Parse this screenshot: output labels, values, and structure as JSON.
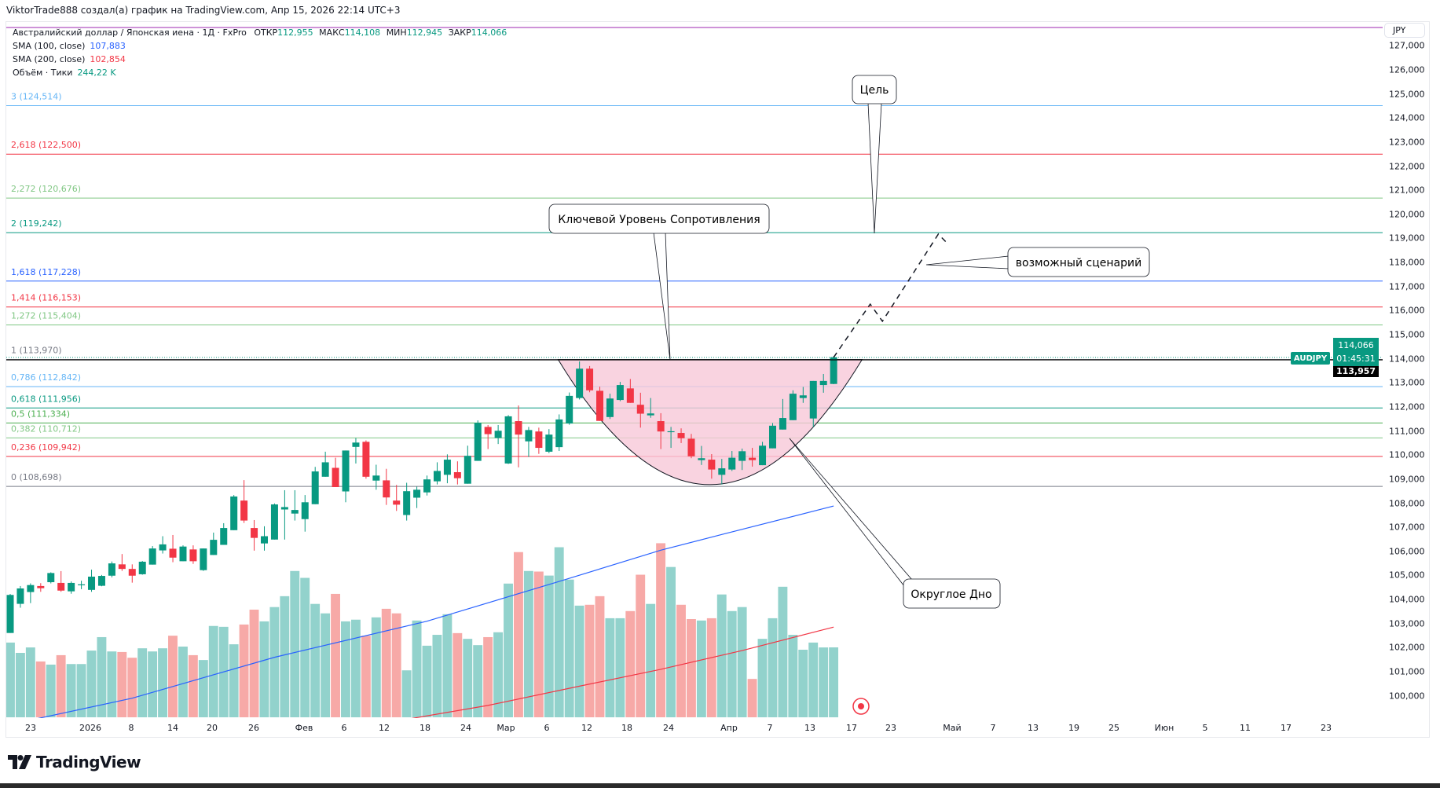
{
  "header": {
    "caption": "ViktorTrade888 создал(а) график на TradingView.com, Апр 15, 2026 22:14 UTC+3"
  },
  "legend": {
    "symbol_desc": "Австралийский доллар / Японская иена · 1Д · FxPro",
    "open_label": "ОТКР",
    "open": "112,955",
    "high_label": "МАКС",
    "high": "114,108",
    "low_label": "МИН",
    "low": "112,945",
    "close_label": "ЗАКР",
    "close": "114,066",
    "sma100_label": "SMA (100, close)",
    "sma100_value": "107,883",
    "sma200_label": "SMA (200, close)",
    "sma200_value": "102,854",
    "volume_label": "Объём · Тики",
    "volume_value": "244,22 K"
  },
  "price_axis": {
    "currency_button": "JPY",
    "ticks": [
      "127,000",
      "126,000",
      "125,000",
      "124,000",
      "123,000",
      "122,000",
      "121,000",
      "120,000",
      "119,000",
      "118,000",
      "117,000",
      "116,000",
      "115,000",
      "114,000",
      "113,000",
      "112,000",
      "111,000",
      "110,000",
      "109,000",
      "108,000",
      "107,000",
      "106,000",
      "105,000",
      "104,000",
      "103,000",
      "102,000",
      "101,000",
      "100,000"
    ],
    "symbol_tag": "AUDJPY",
    "last_price": "114,066",
    "countdown": "01:45:31",
    "line_price": "113,957"
  },
  "time_axis": {
    "labels": [
      "23",
      "2026",
      "8",
      "14",
      "20",
      "26",
      "Фев",
      "6",
      "12",
      "18",
      "24",
      "Мар",
      "6",
      "12",
      "18",
      "24",
      "Апр",
      "7",
      "13",
      "17",
      "23",
      "Май",
      "7",
      "13",
      "19",
      "25",
      "Июн",
      "5",
      "11",
      "17",
      "23"
    ]
  },
  "colors": {
    "up": "#089981",
    "down": "#f23645",
    "vol_up": "#92d2cc",
    "vol_down": "#f7a9a7",
    "sma100": "#2962ff",
    "sma200": "#f23645",
    "pattern_fill": "#f8c8d8"
  },
  "chart_data": {
    "type": "candlestick",
    "symbol": "AUDJPY",
    "ylim": [
      99.0,
      127.8
    ],
    "candles_ohlc": [
      [
        102.61,
        104.23,
        102.61,
        104.19
      ],
      [
        103.82,
        104.56,
        103.66,
        104.46
      ],
      [
        104.31,
        104.67,
        103.85,
        104.6
      ],
      [
        104.56,
        104.68,
        104.32,
        104.47
      ],
      [
        104.72,
        105.13,
        104.67,
        105.1
      ],
      [
        104.69,
        105.18,
        104.32,
        104.37
      ],
      [
        104.34,
        104.75,
        104.24,
        104.69
      ],
      [
        104.61,
        104.78,
        104.43,
        104.63
      ],
      [
        104.4,
        105.24,
        104.32,
        104.95
      ],
      [
        104.57,
        105.02,
        104.55,
        104.98
      ],
      [
        104.99,
        105.58,
        104.92,
        105.5
      ],
      [
        105.46,
        105.89,
        105.19,
        105.27
      ],
      [
        105.27,
        105.46,
        104.7,
        104.99
      ],
      [
        105.05,
        105.6,
        105.03,
        105.57
      ],
      [
        105.45,
        106.22,
        105.45,
        106.12
      ],
      [
        106.04,
        106.63,
        105.91,
        106.29
      ],
      [
        106.11,
        106.68,
        105.55,
        105.74
      ],
      [
        105.59,
        106.25,
        105.59,
        106.2
      ],
      [
        106.08,
        106.25,
        105.48,
        105.59
      ],
      [
        105.22,
        106.12,
        105.19,
        106.12
      ],
      [
        105.85,
        106.78,
        105.85,
        106.48
      ],
      [
        106.27,
        107.17,
        106.27,
        106.97
      ],
      [
        106.88,
        108.34,
        106.88,
        108.28
      ],
      [
        108.11,
        108.96,
        107.18,
        107.28
      ],
      [
        106.97,
        107.3,
        106.03,
        106.56
      ],
      [
        106.33,
        107.04,
        106.03,
        106.63
      ],
      [
        106.49,
        107.99,
        106.49,
        107.95
      ],
      [
        107.74,
        108.54,
        106.49,
        107.84
      ],
      [
        107.57,
        108.54,
        107.28,
        107.72
      ],
      [
        107.34,
        108.34,
        106.82,
        108.04
      ],
      [
        107.96,
        109.51,
        107.96,
        109.32
      ],
      [
        109.1,
        110.14,
        109.1,
        109.7
      ],
      [
        109.47,
        109.89,
        108.67,
        108.67
      ],
      [
        108.49,
        110.19,
        108.04,
        110.19
      ],
      [
        110.34,
        110.71,
        109.65,
        110.52
      ],
      [
        110.55,
        110.61,
        109.02,
        109.1
      ],
      [
        108.94,
        109.6,
        108.56,
        109.15
      ],
      [
        108.95,
        109.43,
        107.93,
        108.24
      ],
      [
        108.11,
        108.76,
        107.68,
        107.94
      ],
      [
        107.51,
        108.85,
        107.28,
        108.5
      ],
      [
        108.23,
        108.69,
        107.8,
        108.56
      ],
      [
        108.45,
        109.15,
        108.32,
        108.99
      ],
      [
        108.91,
        109.7,
        108.78,
        109.34
      ],
      [
        109.18,
        110.03,
        108.83,
        109.81
      ],
      [
        109.29,
        109.74,
        108.78,
        109.04
      ],
      [
        108.81,
        110.39,
        108.81,
        109.97
      ],
      [
        109.76,
        111.44,
        109.76,
        111.34
      ],
      [
        111.17,
        111.25,
        110.25,
        110.87
      ],
      [
        110.71,
        111.25,
        110.46,
        111.01
      ],
      [
        109.65,
        111.66,
        109.63,
        111.61
      ],
      [
        111.41,
        112.06,
        109.49,
        110.85
      ],
      [
        110.57,
        111.17,
        109.92,
        111.04
      ],
      [
        110.98,
        111.14,
        110.05,
        110.3
      ],
      [
        110.14,
        111.08,
        110.08,
        110.85
      ],
      [
        110.33,
        111.69,
        110.17,
        111.48
      ],
      [
        111.31,
        112.6,
        111.26,
        112.46
      ],
      [
        112.37,
        113.89,
        112.31,
        113.59
      ],
      [
        113.59,
        113.7,
        112.61,
        112.69
      ],
      [
        112.67,
        112.84,
        111.42,
        111.42
      ],
      [
        111.58,
        112.55,
        111.5,
        112.35
      ],
      [
        112.29,
        113.04,
        112.24,
        112.91
      ],
      [
        112.77,
        113.16,
        112.17,
        112.17
      ],
      [
        112.09,
        112.59,
        111.14,
        111.72
      ],
      [
        111.65,
        112.37,
        111.55,
        111.73
      ],
      [
        111.41,
        111.74,
        110.25,
        110.98
      ],
      [
        110.97,
        111.17,
        110.3,
        110.99
      ],
      [
        110.92,
        111.11,
        110.5,
        110.7
      ],
      [
        110.68,
        110.88,
        109.87,
        109.95
      ],
      [
        109.79,
        110.38,
        109.59,
        109.87
      ],
      [
        109.81,
        110.04,
        109.02,
        109.4
      ],
      [
        109.18,
        109.84,
        108.78,
        109.45
      ],
      [
        109.4,
        110.17,
        109.34,
        109.89
      ],
      [
        109.76,
        110.27,
        109.38,
        110.16
      ],
      [
        109.89,
        110.3,
        109.52,
        109.79
      ],
      [
        109.58,
        110.55,
        109.58,
        110.39
      ],
      [
        110.28,
        111.33,
        110.28,
        111.22
      ],
      [
        111.06,
        112.33,
        111.06,
        111.54
      ],
      [
        111.45,
        112.69,
        111.45,
        112.55
      ],
      [
        112.37,
        112.83,
        112.17,
        112.48
      ],
      [
        111.52,
        113.08,
        111.17,
        113.08
      ],
      [
        112.91,
        113.37,
        112.59,
        113.08
      ],
      [
        112.955,
        114.108,
        112.945,
        114.066
      ]
    ],
    "volume_k": [
      261,
      225,
      244,
      195,
      184,
      217,
      186,
      186,
      233,
      280,
      230,
      228,
      208,
      241,
      230,
      241,
      285,
      247,
      217,
      200,
      319,
      316,
      255,
      324,
      376,
      335,
      385,
      423,
      511,
      487,
      396,
      363,
      431,
      335,
      341,
      285,
      349,
      379,
      363,
      164,
      338,
      250,
      288,
      360,
      294,
      274,
      252,
      280,
      297,
      467,
      577,
      511,
      509,
      495,
      594,
      481,
      390,
      393,
      423,
      346,
      346,
      371,
      498,
      396,
      608,
      525,
      393,
      343,
      338,
      346,
      429,
      371,
      385,
      134,
      274,
      346,
      456,
      288,
      236,
      261,
      244,
      244.22
    ],
    "sma100_points": [
      [
        1,
        98.9
      ],
      [
        12,
        99.9
      ],
      [
        26,
        101.6
      ],
      [
        41,
        103.1
      ],
      [
        54,
        104.75
      ],
      [
        64,
        106.05
      ],
      [
        70,
        106.7
      ],
      [
        81,
        107.883
      ]
    ],
    "sma200_points": [
      [
        38,
        98.95
      ],
      [
        47,
        99.6
      ],
      [
        56,
        100.4
      ],
      [
        64,
        101.1
      ],
      [
        72,
        101.88
      ],
      [
        81,
        102.854
      ]
    ],
    "fib_levels": [
      {
        "label": "3 (124,514)",
        "price": 124.514,
        "color": "#64b5f6"
      },
      {
        "label": "2,618 (122,500)",
        "price": 122.5,
        "color": "#f23645"
      },
      {
        "label": "2,272 (120,676)",
        "price": 120.676,
        "color": "#81c784"
      },
      {
        "label": "2 (119,242)",
        "price": 119.242,
        "color": "#089981"
      },
      {
        "label": "1,618 (117,228)",
        "price": 117.228,
        "color": "#2962ff"
      },
      {
        "label": "1,414 (116,153)",
        "price": 116.153,
        "color": "#f23645"
      },
      {
        "label": "1,272 (115,404)",
        "price": 115.404,
        "color": "#81c784"
      },
      {
        "label": "1 (113,970)",
        "price": 113.97,
        "color": "#787b86"
      },
      {
        "label": "0,786 (112,842)",
        "price": 112.842,
        "color": "#64b5f6"
      },
      {
        "label": "0,618 (111,956)",
        "price": 111.956,
        "color": "#089981"
      },
      {
        "label": "0,5 (111,334)",
        "price": 111.334,
        "color": "#4caf50"
      },
      {
        "label": "0,382 (110,712)",
        "price": 110.712,
        "color": "#81c784"
      },
      {
        "label": "0,236 (109,942)",
        "price": 109.942,
        "color": "#f23645"
      },
      {
        "label": "0 (108,698)",
        "price": 108.698,
        "color": "#787b86"
      }
    ],
    "rounded_bottom": {
      "top_price": 113.97,
      "bottom_price": 108.77,
      "start_bar": 53.9,
      "end_bar": 83.8
    },
    "scenario_path": [
      [
        81,
        114.06
      ],
      [
        84.6,
        116.27
      ],
      [
        85.8,
        115.56
      ],
      [
        91.3,
        119.18
      ],
      [
        92.2,
        118.79
      ]
    ],
    "annotations": {
      "target": "Цель",
      "resistance": "Ключевой Уровень Сопротивления",
      "scenario": "возможный сценарий",
      "rounded_bottom": "Округлое Дно"
    }
  },
  "branding": {
    "logo_text": "TradingView"
  }
}
